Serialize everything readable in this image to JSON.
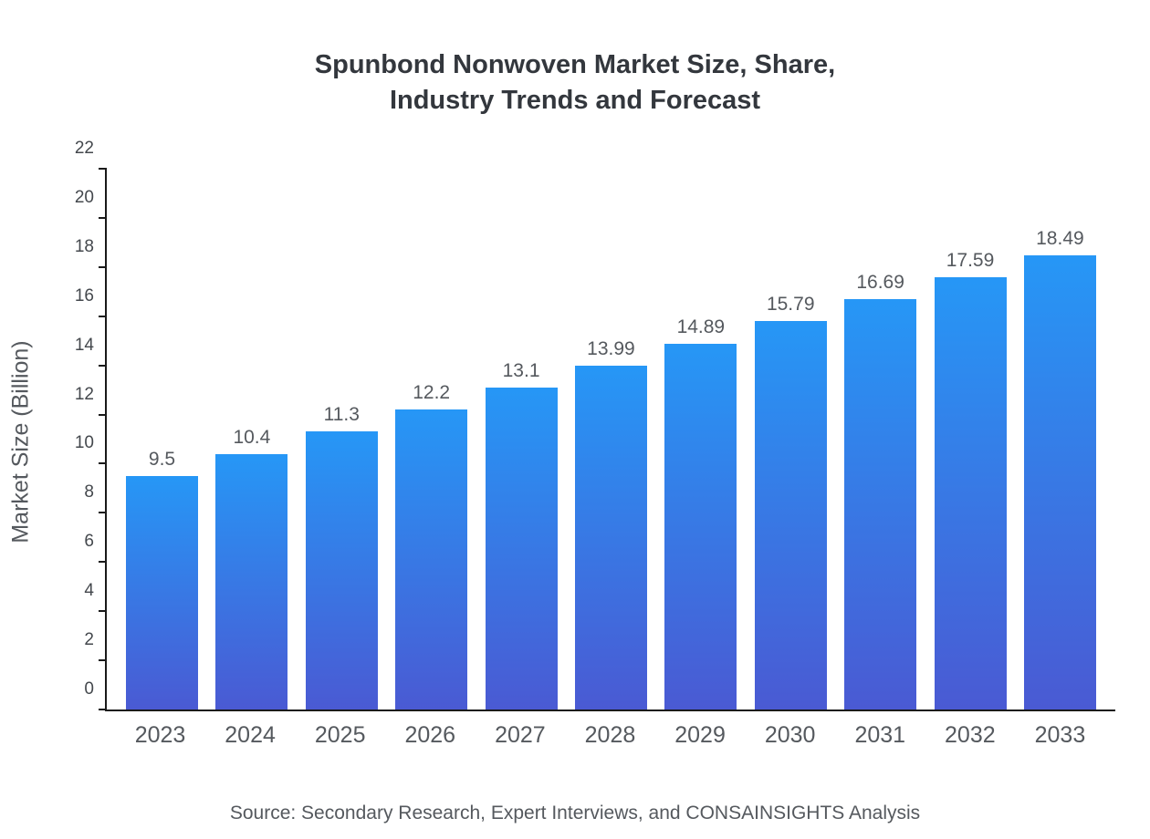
{
  "title": {
    "line1": "Spunbond Nonwoven Market Size, Share,",
    "line2": "Industry Trends and Forecast"
  },
  "source": "Source: Secondary Research, Expert Interviews, and CONSAINSIGHTS Analysis",
  "chart_data": {
    "type": "bar",
    "title": "Spunbond Nonwoven Market Size, Share, Industry Trends and Forecast",
    "xlabel": "",
    "ylabel": "Market Size (Billion)",
    "categories": [
      "2023",
      "2024",
      "2025",
      "2026",
      "2027",
      "2028",
      "2029",
      "2030",
      "2031",
      "2032",
      "2033"
    ],
    "values": [
      9.5,
      10.4,
      11.3,
      12.2,
      13.1,
      13.99,
      14.89,
      15.79,
      16.69,
      17.59,
      18.49
    ],
    "value_labels": [
      "9.5",
      "10.4",
      "11.3",
      "12.2",
      "13.1",
      "13.99",
      "14.89",
      "15.79",
      "16.69",
      "17.59",
      "18.49"
    ],
    "ylim": [
      0,
      22
    ],
    "ytick_step": 2,
    "grid": false,
    "legend_position": "none",
    "colors": {
      "bar_gradient_top": "#2697f6",
      "bar_gradient_bottom": "#4a5ad3",
      "axis": "#1a1a1a",
      "text": "#55595e",
      "title": "#33373d"
    }
  }
}
